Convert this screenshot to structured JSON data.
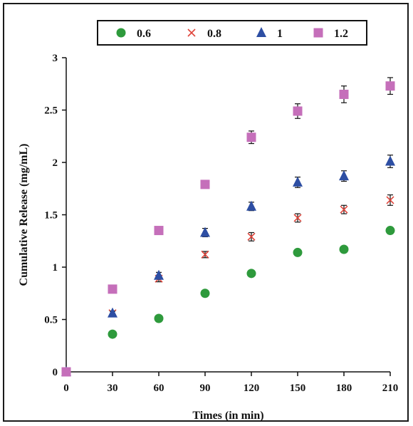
{
  "chart_data": {
    "type": "scatter",
    "xlabel": "Times (in min)",
    "ylabel": "Cumulative Release (mg/mL)",
    "xlim": [
      0,
      210
    ],
    "ylim": [
      0,
      3
    ],
    "x_ticks": [
      0,
      30,
      60,
      90,
      120,
      150,
      180,
      210
    ],
    "y_ticks": [
      "0",
      "0.5",
      "1",
      "1.5",
      "2",
      "2.5",
      "3"
    ],
    "legend_position": "top",
    "grid": false,
    "series": [
      {
        "name": "0.6",
        "marker": "circle",
        "color": "#2e9a3c",
        "points": [
          [
            0,
            0
          ],
          [
            30,
            0.36
          ],
          [
            60,
            0.51
          ],
          [
            90,
            0.75
          ],
          [
            120,
            0.94
          ],
          [
            150,
            1.14
          ],
          [
            180,
            1.17
          ],
          [
            210,
            1.35
          ]
        ],
        "errors": [
          0,
          0.01,
          0.01,
          0.02,
          0.02,
          0.02,
          0.02,
          0.03
        ]
      },
      {
        "name": "0.8",
        "marker": "x",
        "color": "#e0443a",
        "points": [
          [
            0,
            0
          ],
          [
            30,
            0.56
          ],
          [
            60,
            0.89
          ],
          [
            90,
            1.12
          ],
          [
            120,
            1.29
          ],
          [
            150,
            1.47
          ],
          [
            180,
            1.55
          ],
          [
            210,
            1.64
          ]
        ],
        "errors": [
          0,
          0.02,
          0.03,
          0.03,
          0.04,
          0.04,
          0.04,
          0.05
        ]
      },
      {
        "name": "1",
        "marker": "triangle",
        "color": "#2d4ea3",
        "points": [
          [
            0,
            0
          ],
          [
            30,
            0.56
          ],
          [
            60,
            0.92
          ],
          [
            90,
            1.33
          ],
          [
            120,
            1.58
          ],
          [
            150,
            1.81
          ],
          [
            180,
            1.87
          ],
          [
            210,
            2.01
          ]
        ],
        "errors": [
          0,
          0.02,
          0.03,
          0.04,
          0.04,
          0.05,
          0.05,
          0.06
        ]
      },
      {
        "name": "1.2",
        "marker": "square",
        "color": "#c56fba",
        "points": [
          [
            0,
            0
          ],
          [
            30,
            0.79
          ],
          [
            60,
            1.35
          ],
          [
            90,
            1.79
          ],
          [
            120,
            2.24
          ],
          [
            150,
            2.49
          ],
          [
            180,
            2.65
          ],
          [
            210,
            2.73
          ]
        ],
        "errors": [
          0,
          0.02,
          0.02,
          0.03,
          0.06,
          0.07,
          0.08,
          0.08
        ]
      }
    ]
  }
}
